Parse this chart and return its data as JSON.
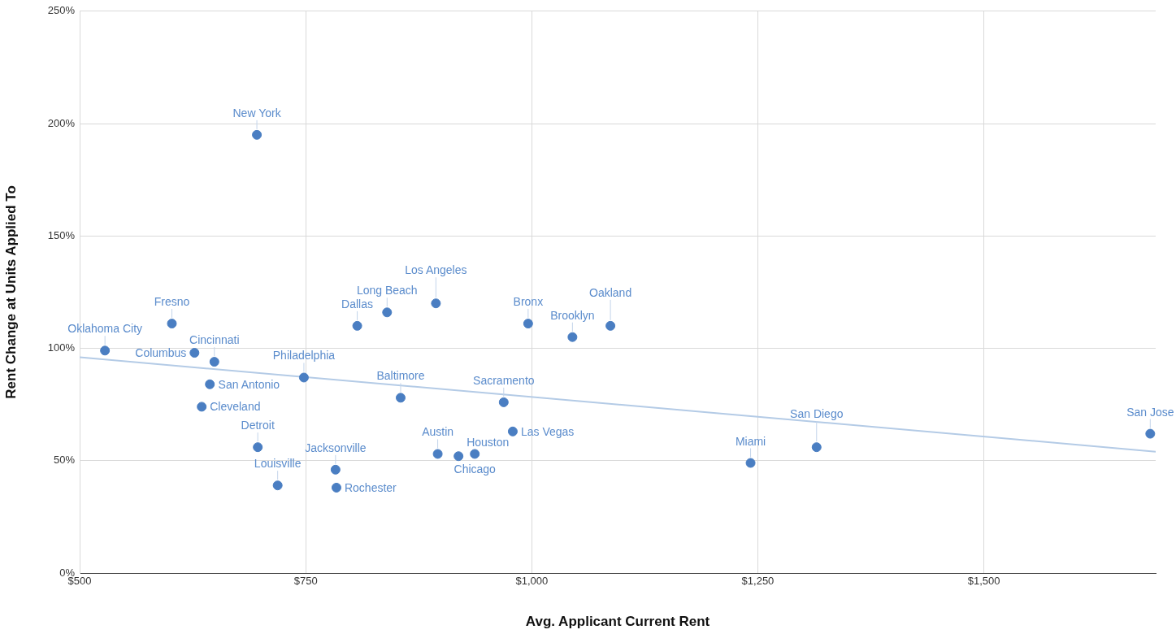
{
  "chart_data": {
    "type": "scatter",
    "xlabel": "Avg. Applicant Current Rent",
    "ylabel": "Rent Change at Units Applied To",
    "grid": true,
    "xlim": [
      500,
      1690
    ],
    "xticks": [
      {
        "value": 500,
        "label": "$500"
      },
      {
        "value": 750,
        "label": "$750"
      },
      {
        "value": 1000,
        "label": "$1,000"
      },
      {
        "value": 1250,
        "label": "$1,250"
      },
      {
        "value": 1500,
        "label": "$1,500"
      }
    ],
    "ylim": [
      0,
      250
    ],
    "yticks": [
      {
        "value": 0,
        "label": "0%"
      },
      {
        "value": 50,
        "label": "50%"
      },
      {
        "value": 100,
        "label": "100%"
      },
      {
        "value": 150,
        "label": "150%"
      },
      {
        "value": 200,
        "label": "200%"
      },
      {
        "value": 250,
        "label": "250%"
      }
    ],
    "series": [
      {
        "color": "#4a7ec2",
        "x": [
          528,
          602,
          627,
          649,
          644,
          635,
          696,
          748,
          807,
          697,
          719,
          783,
          784,
          840,
          894,
          996,
          1045,
          1087,
          855,
          969,
          979,
          896,
          919,
          937,
          1242,
          1315,
          1684
        ],
        "marker": "circle",
        "values": [
          99,
          111,
          98,
          94,
          84,
          74,
          195,
          87,
          110,
          56,
          39,
          46,
          38,
          116,
          120,
          111,
          105,
          110,
          78,
          76,
          63,
          53,
          52,
          53,
          49,
          56,
          62
        ]
      },
      {
        "type": "line",
        "color": "#b4cbe6",
        "x": [
          500,
          1690
        ],
        "values": [
          96,
          54
        ]
      }
    ],
    "annotations": [
      {
        "text": "Oklahoma City",
        "x": 528,
        "y": 99
      },
      {
        "text": "Fresno",
        "x": 602,
        "y": 111
      },
      {
        "text": "Columbus",
        "x": 627,
        "y": 98
      },
      {
        "text": "Cincinnati",
        "x": 649,
        "y": 94
      },
      {
        "text": "San Antonio",
        "x": 644,
        "y": 84
      },
      {
        "text": "Cleveland",
        "x": 635,
        "y": 74
      },
      {
        "text": "New York",
        "x": 696,
        "y": 195
      },
      {
        "text": "Philadelphia",
        "x": 748,
        "y": 87
      },
      {
        "text": "Dallas",
        "x": 807,
        "y": 110
      },
      {
        "text": "Detroit",
        "x": 697,
        "y": 56
      },
      {
        "text": "Louisville",
        "x": 719,
        "y": 39
      },
      {
        "text": "Jacksonville",
        "x": 783,
        "y": 46
      },
      {
        "text": "Rochester",
        "x": 784,
        "y": 38
      },
      {
        "text": "Long Beach",
        "x": 840,
        "y": 116
      },
      {
        "text": "Los Angeles",
        "x": 894,
        "y": 120
      },
      {
        "text": "Bronx",
        "x": 996,
        "y": 111
      },
      {
        "text": "Brooklyn",
        "x": 1045,
        "y": 105
      },
      {
        "text": "Oakland",
        "x": 1087,
        "y": 110
      },
      {
        "text": "Baltimore",
        "x": 855,
        "y": 78
      },
      {
        "text": "Sacramento",
        "x": 969,
        "y": 76
      },
      {
        "text": "Las Vegas",
        "x": 979,
        "y": 63
      },
      {
        "text": "Austin",
        "x": 896,
        "y": 53
      },
      {
        "text": "Houston",
        "x": 919,
        "y": 52
      },
      {
        "text": "Chicago",
        "x": 937,
        "y": 53
      },
      {
        "text": "Miami",
        "x": 1242,
        "y": 49
      },
      {
        "text": "San Diego",
        "x": 1315,
        "y": 56
      },
      {
        "text": "San Jose",
        "x": 1684,
        "y": 62
      }
    ]
  }
}
